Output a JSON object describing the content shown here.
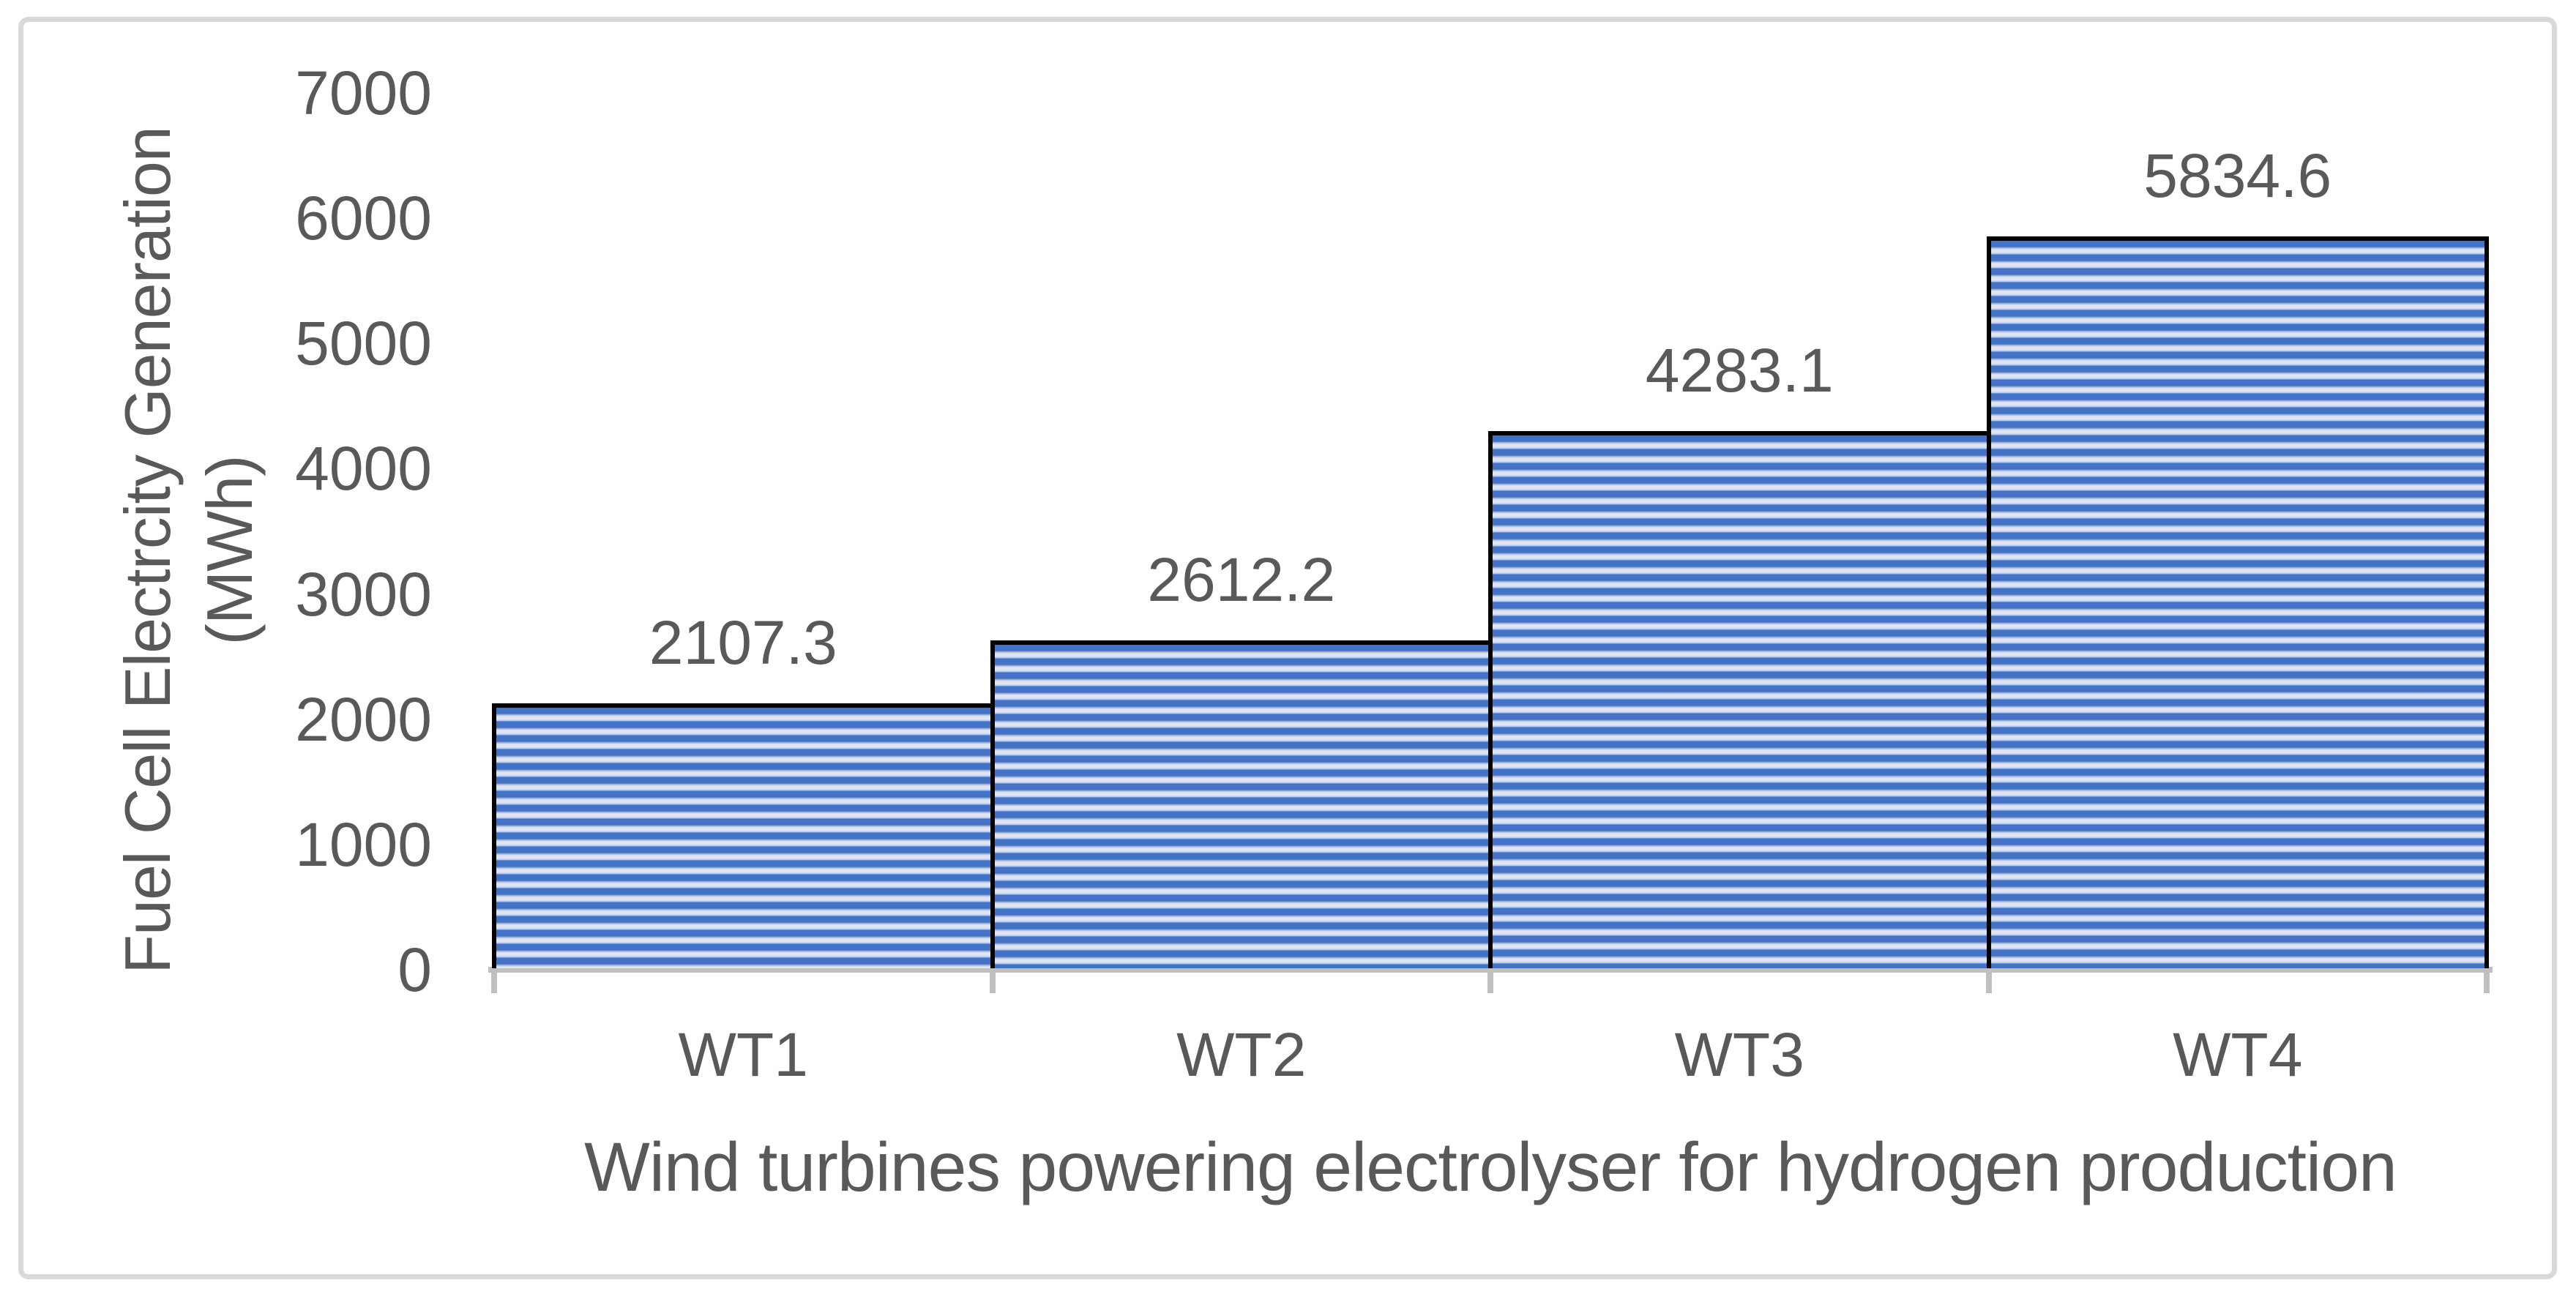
{
  "chart_data": {
    "type": "bar",
    "title": "",
    "categories": [
      "WT1",
      "WT2",
      "WT3",
      "WT4"
    ],
    "values": [
      2107.3,
      2612.2,
      4283.1,
      5834.6
    ],
    "data_labels": [
      "2107.3",
      "2612.2",
      "4283.1",
      "5834.6"
    ],
    "xlabel": "Wind turbines powering electrolyser for hydrogen production",
    "ylabel_line1": "Fuel Cell Electrcity Generation",
    "ylabel_line2": "(MWh)",
    "ylim": [
      0,
      7000
    ],
    "yticks": [
      0,
      1000,
      2000,
      3000,
      4000,
      5000,
      6000,
      7000
    ],
    "ytick_labels": [
      "0",
      "1000",
      "2000",
      "3000",
      "4000",
      "5000",
      "6000",
      "7000"
    ],
    "grid": false,
    "legend_position": "none",
    "bar_gap_percent": 0,
    "colors": {
      "bar_stripe_blue": "#4472C4",
      "bar_stripe_light": "#DCE4F5",
      "bar_outline": "#000000",
      "axis_line": "#BFBFBF",
      "text": "#595959",
      "chart_border": "#D9D9D9",
      "background": "#FFFFFF"
    }
  }
}
